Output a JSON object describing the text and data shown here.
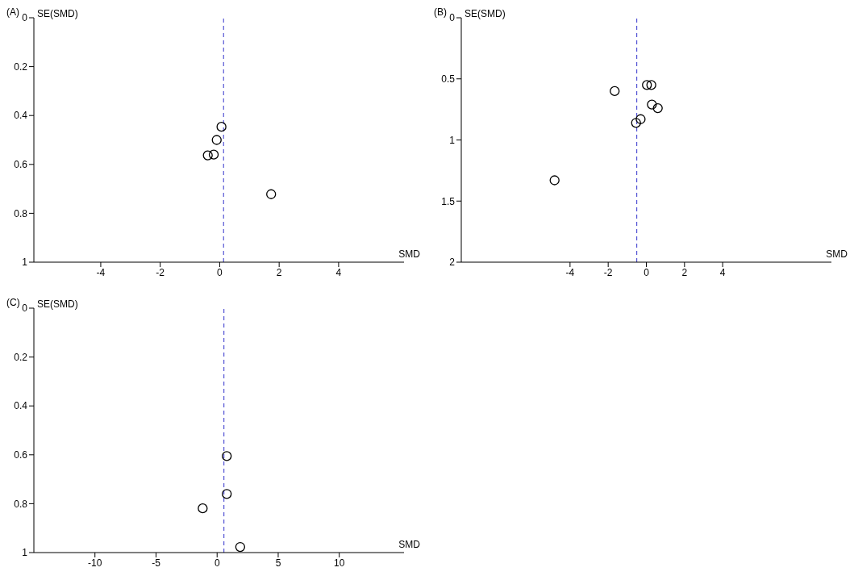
{
  "chart_data": [
    {
      "type": "scatter",
      "title": "(A)",
      "xlabel": "SMD",
      "ylabel": "SE(SMD)",
      "marker": "circle",
      "grid": false,
      "legend": false,
      "xlim": [
        -6.25,
        6.2
      ],
      "ylim": [
        1,
        0
      ],
      "xticks": [
        -4,
        -2,
        0,
        2,
        4
      ],
      "yticks": [
        0,
        0.2,
        0.4,
        0.6,
        0.8,
        1
      ],
      "series": [
        {
          "color": "#000000",
          "x": [
            0.06,
            -0.1,
            -0.4,
            -0.2,
            1.73
          ],
          "values": [
            0.446,
            0.5,
            0.563,
            0.56,
            0.722
          ]
        }
      ],
      "ref_lines": [
        {
          "axis": "x",
          "value": 0.13,
          "color": "#3333cc",
          "line_style": "dashed"
        }
      ]
    },
    {
      "type": "scatter",
      "title": "(B)",
      "xlabel": "SMD",
      "ylabel": "SE(SMD)",
      "marker": "circle",
      "grid": false,
      "legend": false,
      "xlim": [
        -9.7,
        9.7
      ],
      "ylim": [
        2,
        0
      ],
      "xticks": [
        -4,
        -2,
        0,
        2,
        4
      ],
      "yticks": [
        0,
        0.5,
        1,
        1.5,
        2
      ],
      "series": [
        {
          "color": "#000000",
          "x": [
            -1.66,
            0.03,
            0.26,
            0.29,
            0.6,
            -0.3,
            -0.54,
            -4.81
          ],
          "values": [
            0.6,
            0.55,
            0.55,
            0.71,
            0.74,
            0.83,
            0.86,
            1.33
          ]
        }
      ],
      "ref_lines": [
        {
          "axis": "x",
          "value": -0.5,
          "color": "#3333cc",
          "line_style": "dashed"
        }
      ]
    },
    {
      "type": "scatter",
      "title": "(C)",
      "xlabel": "SMD",
      "ylabel": "SE(SMD)",
      "marker": "circle",
      "grid": false,
      "legend": false,
      "xlim": [
        -15,
        15.3
      ],
      "ylim": [
        1,
        0
      ],
      "xticks": [
        -10,
        -5,
        0,
        5,
        10
      ],
      "yticks": [
        0,
        0.2,
        0.4,
        0.6,
        0.8,
        1
      ],
      "series": [
        {
          "color": "#000000",
          "x": [
            0.79,
            0.79,
            -1.18,
            1.89
          ],
          "values": [
            0.605,
            0.76,
            0.819,
            0.977
          ]
        }
      ],
      "ref_lines": [
        {
          "axis": "x",
          "value": 0.56,
          "color": "#3333cc",
          "line_style": "dashed"
        }
      ]
    }
  ]
}
